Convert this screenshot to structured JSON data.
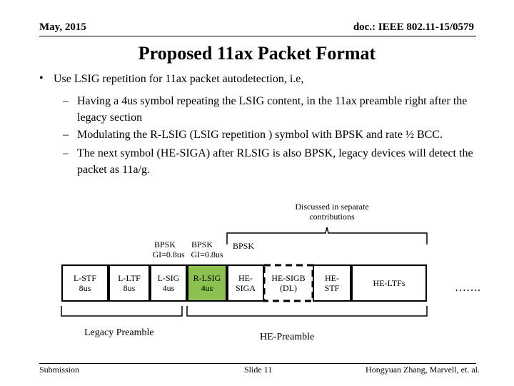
{
  "header": {
    "date": "May, 2015",
    "doc": "doc.: IEEE 802.11-15/0579"
  },
  "title": "Proposed 11ax Packet Format",
  "bullet": {
    "text": "Use LSIG repetition for 11ax packet autodetection, i.e,",
    "subs": [
      "Having a 4us symbol repeating the LSIG content, in the 11ax preamble right after the legacy section",
      " Modulating the R-LSIG  (LSIG repetition ) symbol with BPSK and rate ½ BCC.",
      "The next symbol (HE-SIGA) after RLSIG is also BPSK, legacy devices will detect the packet as 11a/g."
    ]
  },
  "diagram": {
    "note": "Discussed in separate contributions",
    "mod_labels": {
      "bpsk1": "BPSK",
      "bpsk2": "BPSK",
      "gi1": "GI=0.8us",
      "gi2": "GI=0.8us",
      "bpsk3": "BPSK"
    },
    "fields": {
      "lstf": "L-STF 8us",
      "lltf": "L-LTF 8us",
      "lsig": "L-SIG 4us",
      "rlsig": "R-LSIG 4us",
      "hesiga": "HE-SIGA",
      "hesigb": "HE-SIGB (DL)",
      "hestf": "HE-STF",
      "heltfs": "HE-LTFs",
      "more": "……."
    },
    "legacy_label": "Legacy Preamble",
    "he_label": "HE-Preamble",
    "colors": {
      "rlsig": "#8cc152",
      "field": "#ffffff"
    }
  },
  "footer": {
    "left": "Submission",
    "center": "Slide 11",
    "right": "Hongyuan Zhang,  Marvell, et. al."
  }
}
